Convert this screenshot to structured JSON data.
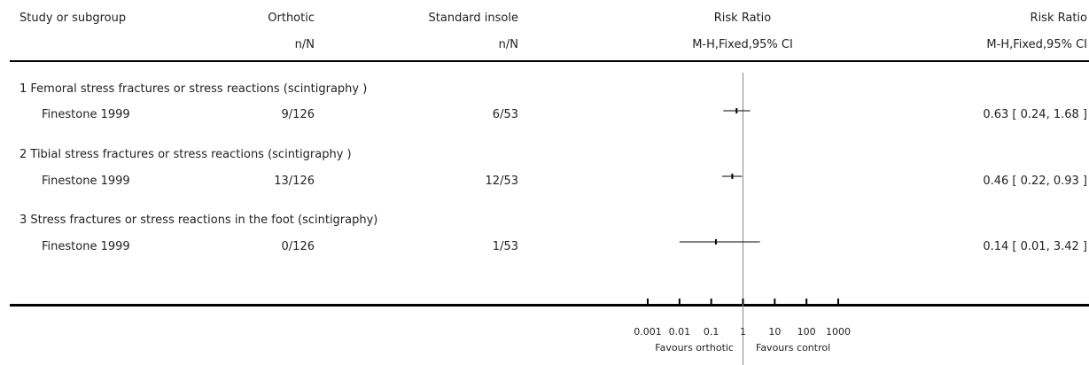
{
  "header": {
    "col_study": "Study or subgroup",
    "col_orthotic": "Orthotic",
    "col_standard": "Standard insole",
    "col_rr_plot": "Risk Ratio",
    "col_rr_text": "Risk Ratio",
    "sub_orthotic": "n/N",
    "sub_standard": "n/N",
    "sub_rr_plot": "M-H,Fixed,95% CI",
    "sub_rr_text": "M-H,Fixed,95% CI"
  },
  "chart_data": {
    "type": "forest",
    "scale": "log",
    "xlim": [
      0.001,
      1000
    ],
    "ticks": [
      0.001,
      0.01,
      0.1,
      1,
      10,
      100,
      1000
    ],
    "tick_labels": [
      "0.001",
      "0.01",
      "0.1",
      "1",
      "10",
      "100",
      "1000"
    ],
    "favours_left": "Favours orthotic",
    "favours_right": "Favours control",
    "subgroups": [
      {
        "title": "1 Femoral stress fractures or stress reactions (scintigraphy )",
        "studies": [
          {
            "study": "Finestone 1999",
            "orthotic": "9/126",
            "standard": "6/53",
            "rr": 0.63,
            "lo": 0.24,
            "hi": 1.68,
            "label": "0.63 [ 0.24, 1.68 ]"
          }
        ]
      },
      {
        "title": "2 Tibial stress fractures or stress reactions (scintigraphy )",
        "studies": [
          {
            "study": "Finestone 1999",
            "orthotic": "13/126",
            "standard": "12/53",
            "rr": 0.46,
            "lo": 0.22,
            "hi": 0.93,
            "label": "0.46 [ 0.22, 0.93 ]"
          }
        ]
      },
      {
        "title": "3 Stress fractures or stress reactions in the foot (scintigraphy)",
        "studies": [
          {
            "study": "Finestone 1999",
            "orthotic": "0/126",
            "standard": "1/53",
            "rr": 0.14,
            "lo": 0.01,
            "hi": 3.42,
            "label": "0.14 [ 0.01, 3.42 ]"
          }
        ]
      }
    ]
  }
}
